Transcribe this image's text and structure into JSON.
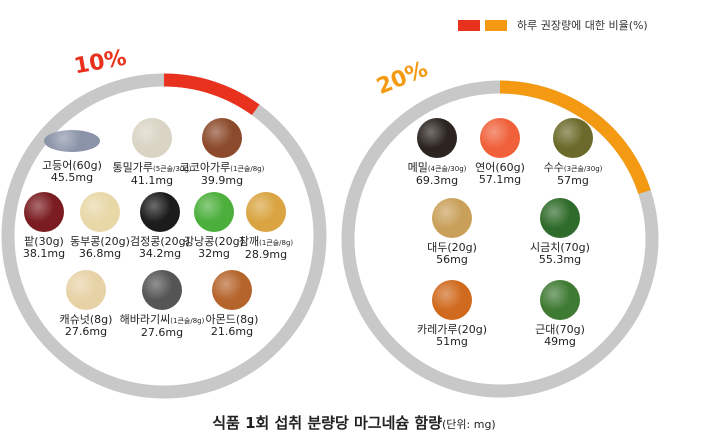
{
  "legend": {
    "label": "하루 권장량에 대한 비율(%)",
    "colors": [
      "#e8321e",
      "#f39a12"
    ]
  },
  "chart_data": [
    {
      "type": "pie",
      "percent_label": "10%",
      "fraction": 0.1,
      "accent": "#e8321e",
      "track": "#c8c8c8",
      "items": [
        {
          "name": "고등어(60g)",
          "note": "",
          "value": "45.5mg",
          "color": "#8a93a8",
          "icon": "mackerel-icon"
        },
        {
          "name": "통밀가루",
          "note": "(5큰술/30g)",
          "value": "41.1mg",
          "color": "#d9d4c3",
          "icon": "wheat-flour-icon"
        },
        {
          "name": "코코아가루",
          "note": "(1큰술/8g)",
          "value": "39.9mg",
          "color": "#8b4a2b",
          "icon": "cocoa-powder-icon"
        },
        {
          "name": "팥(30g)",
          "note": "",
          "value": "38.1mg",
          "color": "#7a1c20",
          "icon": "red-bean-icon"
        },
        {
          "name": "동부콩(20g)",
          "note": "",
          "value": "36.8mg",
          "color": "#e8d8a8",
          "icon": "cowpea-icon"
        },
        {
          "name": "검정콩(20g)",
          "note": "",
          "value": "34.2mg",
          "color": "#1c1c1c",
          "icon": "black-bean-icon"
        },
        {
          "name": "강낭콩(20g)",
          "note": "",
          "value": "32mg",
          "color": "#4caf3c",
          "icon": "green-bean-icon"
        },
        {
          "name": "참깨",
          "note": "(1큰술/8g)",
          "value": "28.9mg",
          "color": "#d9a441",
          "icon": "sesame-icon"
        },
        {
          "name": "캐슈넛(8g)",
          "note": "",
          "value": "27.6mg",
          "color": "#e7d2a6",
          "icon": "cashew-icon"
        },
        {
          "name": "해바라기씨",
          "note": "(1큰술/8g)",
          "value": "27.6mg",
          "color": "#555555",
          "icon": "sunflower-seed-icon"
        },
        {
          "name": "아몬드(8g)",
          "note": "",
          "value": "21.6mg",
          "color": "#b5652c",
          "icon": "almond-icon"
        }
      ]
    },
    {
      "type": "pie",
      "percent_label": "20%",
      "fraction": 0.2,
      "accent": "#f39a12",
      "track": "#c8c8c8",
      "items": [
        {
          "name": "메밀",
          "note": "(4큰술/30g)",
          "value": "69.3mg",
          "color": "#2b2420",
          "icon": "buckwheat-icon"
        },
        {
          "name": "연어(60g)",
          "note": "",
          "value": "57.1mg",
          "color": "#f0603a",
          "icon": "salmon-icon"
        },
        {
          "name": "수수",
          "note": "(3큰술/30g)",
          "value": "57mg",
          "color": "#6b6a2a",
          "icon": "sorghum-icon"
        },
        {
          "name": "대두(20g)",
          "note": "",
          "value": "56mg",
          "color": "#c9a05a",
          "icon": "soybean-icon"
        },
        {
          "name": "시금치(70g)",
          "note": "",
          "value": "55.3mg",
          "color": "#2f6b2a",
          "icon": "spinach-icon"
        },
        {
          "name": "카레가루(20g)",
          "note": "",
          "value": "51mg",
          "color": "#d06a1e",
          "icon": "curry-powder-icon"
        },
        {
          "name": "근대(70g)",
          "note": "",
          "value": "49mg",
          "color": "#3f7a33",
          "icon": "chard-icon"
        }
      ]
    }
  ],
  "caption": {
    "title": "식품 1회 섭취 분량당 마그네슘 함량",
    "unit": "(단위: mg)"
  }
}
